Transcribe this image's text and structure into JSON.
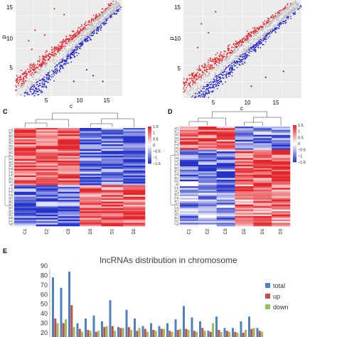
{
  "panels": {
    "scatter_a": {
      "letter": "",
      "xlabel": "c",
      "ylabel": "p"
    },
    "scatter_b": {
      "letter": "",
      "xlabel": "c",
      "ylabel": "p"
    },
    "heatmap_c": {
      "letter": "C"
    },
    "heatmap_d": {
      "letter": "D"
    },
    "bar_e": {
      "letter": "E"
    }
  },
  "colors": {
    "up": "#e8262b",
    "down": "#2a2bd0",
    "neutral": "#bdbdbd",
    "panel_bg": "#ebebeb",
    "heat_high": "#e3262b",
    "heat_mid": "#ffffff",
    "heat_low": "#2433c8",
    "bar_total": "#4f81bd",
    "bar_up": "#c0504d",
    "bar_down": "#9bbb59"
  },
  "chart_data": [
    {
      "type": "scatter",
      "id": "scatter_a",
      "xlabel": "c",
      "ylabel": "p",
      "x_ticks": [
        "5",
        "10",
        "15"
      ],
      "y_ticks": [
        "5",
        "10",
        "15"
      ],
      "grid": true,
      "series": [
        {
          "name": "",
          "color": "#e8262b",
          "points": [
            [
              2.5,
              10.0
            ],
            [
              3.0,
              8.5
            ],
            [
              6.5,
              15.5
            ],
            [
              8.0,
              14.5
            ],
            [
              5.0,
              11.0
            ],
            [
              3.5,
              11.8
            ]
          ]
        },
        {
          "name": "",
          "color": "#2a2bd0",
          "points": [
            [
              14.0,
              3.0
            ],
            [
              11.5,
              5.0
            ],
            [
              9.5,
              3.0
            ],
            [
              12.5,
              4.0
            ]
          ]
        }
      ]
    },
    {
      "type": "scatter",
      "id": "scatter_b",
      "xlabel": "c",
      "ylabel": "p",
      "x_ticks": [
        "5",
        "10",
        "15"
      ],
      "y_ticks": [
        "5",
        "10",
        "15"
      ],
      "grid": true,
      "series": [
        {
          "name": "",
          "color": "#e8262b",
          "points": [
            [
              3.0,
              13.0
            ],
            [
              5.0,
              15.0
            ],
            [
              4.0,
              11.5
            ],
            [
              2.5,
              9.0
            ]
          ]
        },
        {
          "name": "",
          "color": "#2a2bd0",
          "points": [
            [
              12.0,
              4.0
            ],
            [
              14.5,
              5.0
            ],
            [
              10.0,
              2.5
            ]
          ]
        }
      ]
    },
    {
      "type": "heatmap",
      "id": "heatmap_c",
      "columns": [
        "C1",
        "C2",
        "C3",
        "D3",
        "D1",
        "D2"
      ],
      "scale_ticks": [
        "1.5",
        "1",
        "0.5",
        "0",
        "−0.5",
        "−1",
        "−1.5"
      ],
      "range": [
        -1.5,
        1.5
      ]
    },
    {
      "type": "heatmap",
      "id": "heatmap_d",
      "columns": [
        "C1",
        "C2",
        "C3",
        "D2",
        "D1",
        "D3"
      ],
      "scale_ticks": [
        "1.5",
        "1",
        "0.5",
        "0",
        "−0.5",
        "−1",
        "−1.5"
      ],
      "range": [
        -1.5,
        1.5
      ]
    },
    {
      "type": "bar",
      "id": "bar_e",
      "title": "lncRNAs distribution in chromosome",
      "y_ticks": [
        "20",
        "30",
        "40",
        "50",
        "60",
        "70",
        "80",
        "90"
      ],
      "ylim": [
        20,
        90
      ],
      "legend_placement": "right",
      "series": [
        {
          "name": "total",
          "color": "#4f81bd",
          "values": [
            78,
            67,
            84,
            30,
            35,
            38,
            32,
            54,
            26,
            44,
            35,
            27,
            30,
            27,
            30,
            34,
            48,
            36,
            32,
            22,
            37,
            25,
            25,
            32,
            37,
            25
          ]
        },
        {
          "name": "up",
          "color": "#c0504d",
          "values": [
            35,
            30,
            49,
            24,
            23,
            21,
            26,
            27,
            25,
            26,
            22,
            24,
            23,
            24,
            22,
            23,
            24,
            22,
            25,
            21,
            23,
            22,
            21,
            20,
            24,
            22
          ]
        },
        {
          "name": "down",
          "color": "#9bbb59",
          "values": [
            30,
            34,
            26,
            21,
            22,
            22,
            27,
            22,
            25,
            23,
            25,
            21,
            22,
            24,
            21,
            24,
            23,
            21,
            22,
            30,
            21,
            21,
            20,
            23,
            25,
            21
          ]
        }
      ]
    }
  ]
}
